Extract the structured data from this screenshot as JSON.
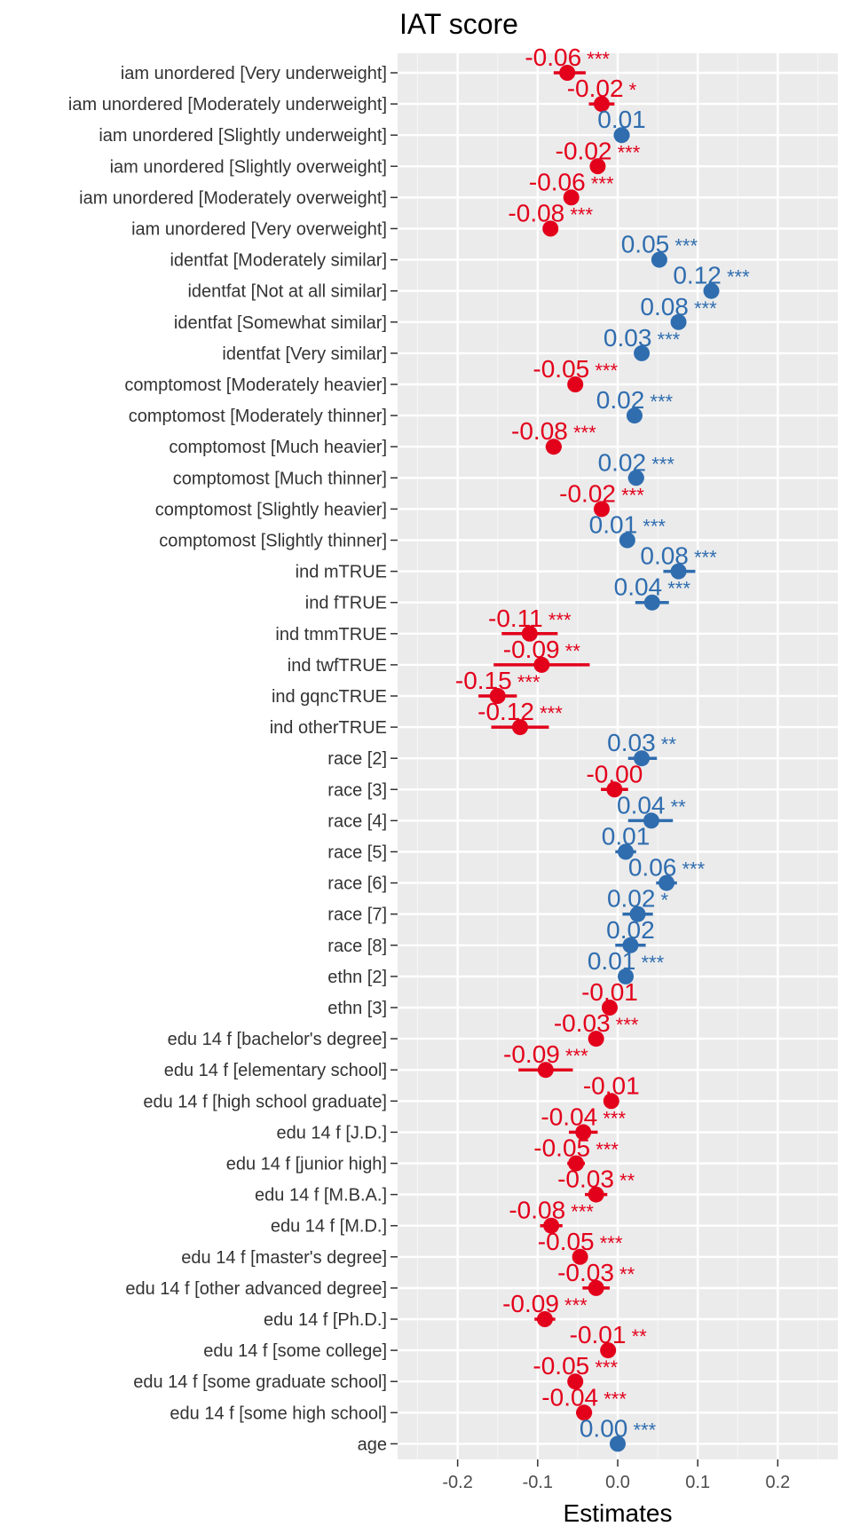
{
  "chart_data": {
    "type": "scatter",
    "title": "IAT score",
    "xlabel": "Estimates",
    "xlim": [
      -0.275,
      0.275
    ],
    "xticks": [
      -0.2,
      -0.1,
      0.0,
      0.1,
      0.2
    ],
    "xtick_labels": [
      "-0.2",
      "-0.1",
      "0.0",
      "0.1",
      "0.2"
    ],
    "grid": true,
    "colors": {
      "negative": "#e3001b",
      "positive": "#2f6daf"
    },
    "terms": [
      {
        "term": "iam unordered [Very underweight]",
        "estimate": -0.063,
        "ci": [
          -0.08,
          -0.04
        ],
        "label": "-0.06",
        "stars": "***"
      },
      {
        "term": "iam unordered [Moderately underweight]",
        "estimate": -0.02,
        "ci": [
          -0.036,
          -0.004
        ],
        "label": "-0.02",
        "stars": "*"
      },
      {
        "term": "iam unordered [Slightly underweight]",
        "estimate": 0.005,
        "ci": [
          -0.005,
          0.015
        ],
        "label": "0.01",
        "stars": ""
      },
      {
        "term": "iam unordered [Slightly overweight]",
        "estimate": -0.025,
        "ci": [
          -0.03,
          -0.02
        ],
        "label": "-0.02",
        "stars": "***"
      },
      {
        "term": "iam unordered [Moderately overweight]",
        "estimate": -0.058,
        "ci": [
          -0.063,
          -0.053
        ],
        "label": "-0.06",
        "stars": "***"
      },
      {
        "term": "iam unordered [Very overweight]",
        "estimate": -0.084,
        "ci": [
          -0.09,
          -0.078
        ],
        "label": "-0.08",
        "stars": "***"
      },
      {
        "term": "identfat [Moderately similar]",
        "estimate": 0.052,
        "ci": [
          0.046,
          0.058
        ],
        "label": "0.05",
        "stars": "***"
      },
      {
        "term": "identfat [Not at all similar]",
        "estimate": 0.117,
        "ci": [
          0.109,
          0.125
        ],
        "label": "0.12",
        "stars": "***"
      },
      {
        "term": "identfat [Somewhat similar]",
        "estimate": 0.076,
        "ci": [
          0.07,
          0.082
        ],
        "label": "0.08",
        "stars": "***"
      },
      {
        "term": "identfat [Very similar]",
        "estimate": 0.03,
        "ci": [
          0.024,
          0.036
        ],
        "label": "0.03",
        "stars": "***"
      },
      {
        "term": "comptomost [Moderately heavier]",
        "estimate": -0.053,
        "ci": [
          -0.058,
          -0.048
        ],
        "label": "-0.05",
        "stars": "***"
      },
      {
        "term": "comptomost [Moderately thinner]",
        "estimate": 0.021,
        "ci": [
          0.015,
          0.027
        ],
        "label": "0.02",
        "stars": "***"
      },
      {
        "term": "comptomost [Much heavier]",
        "estimate": -0.08,
        "ci": [
          -0.09,
          -0.07
        ],
        "label": "-0.08",
        "stars": "***"
      },
      {
        "term": "comptomost [Much thinner]",
        "estimate": 0.023,
        "ci": [
          0.013,
          0.033
        ],
        "label": "0.02",
        "stars": "***"
      },
      {
        "term": "comptomost [Slightly heavier]",
        "estimate": -0.02,
        "ci": [
          -0.025,
          -0.015
        ],
        "label": "-0.02",
        "stars": "***"
      },
      {
        "term": "comptomost [Slightly thinner]",
        "estimate": 0.012,
        "ci": [
          0.007,
          0.017
        ],
        "label": "0.01",
        "stars": "***"
      },
      {
        "term": "ind mTRUE",
        "estimate": 0.076,
        "ci": [
          0.057,
          0.097
        ],
        "label": "0.08",
        "stars": "***"
      },
      {
        "term": "ind fTRUE",
        "estimate": 0.043,
        "ci": [
          0.022,
          0.064
        ],
        "label": "0.04",
        "stars": "***"
      },
      {
        "term": "ind tmmTRUE",
        "estimate": -0.11,
        "ci": [
          -0.145,
          -0.075
        ],
        "label": "-0.11",
        "stars": "***"
      },
      {
        "term": "ind twfTRUE",
        "estimate": -0.095,
        "ci": [
          -0.155,
          -0.035
        ],
        "label": "-0.09",
        "stars": "**"
      },
      {
        "term": "ind gqncTRUE",
        "estimate": -0.15,
        "ci": [
          -0.174,
          -0.126
        ],
        "label": "-0.15",
        "stars": "***"
      },
      {
        "term": "ind otherTRUE",
        "estimate": -0.122,
        "ci": [
          -0.158,
          -0.086
        ],
        "label": "-0.12",
        "stars": "***"
      },
      {
        "term": "race [2]",
        "estimate": 0.03,
        "ci": [
          0.013,
          0.049
        ],
        "label": "0.03",
        "stars": "**"
      },
      {
        "term": "race [3]",
        "estimate": -0.004,
        "ci": [
          -0.021,
          0.013
        ],
        "label": "-0.00",
        "stars": ""
      },
      {
        "term": "race [4]",
        "estimate": 0.042,
        "ci": [
          0.013,
          0.069
        ],
        "label": "0.04",
        "stars": "**"
      },
      {
        "term": "race [5]",
        "estimate": 0.01,
        "ci": [
          -0.003,
          0.023
        ],
        "label": "0.01",
        "stars": ""
      },
      {
        "term": "race [6]",
        "estimate": 0.061,
        "ci": [
          0.048,
          0.074
        ],
        "label": "0.06",
        "stars": "***"
      },
      {
        "term": "race [7]",
        "estimate": 0.025,
        "ci": [
          0.006,
          0.044
        ],
        "label": "0.02",
        "stars": "*"
      },
      {
        "term": "race [8]",
        "estimate": 0.016,
        "ci": [
          -0.003,
          0.035
        ],
        "label": "0.02",
        "stars": ""
      },
      {
        "term": "ethn [2]",
        "estimate": 0.01,
        "ci": [
          0.006,
          0.014
        ],
        "label": "0.01",
        "stars": "***"
      },
      {
        "term": "ethn [3]",
        "estimate": -0.01,
        "ci": [
          -0.019,
          -0.001
        ],
        "label": "-0.01",
        "stars": ""
      },
      {
        "term": "edu 14 f [bachelor's degree]",
        "estimate": -0.027,
        "ci": [
          -0.032,
          -0.022
        ],
        "label": "-0.03",
        "stars": "***"
      },
      {
        "term": "edu 14 f [elementary school]",
        "estimate": -0.09,
        "ci": [
          -0.124,
          -0.056
        ],
        "label": "-0.09",
        "stars": "***"
      },
      {
        "term": "edu 14 f [high school graduate]",
        "estimate": -0.008,
        "ci": [
          -0.014,
          -0.002
        ],
        "label": "-0.01",
        "stars": ""
      },
      {
        "term": "edu 14 f [J.D.]",
        "estimate": -0.043,
        "ci": [
          -0.061,
          -0.025
        ],
        "label": "-0.04",
        "stars": "***"
      },
      {
        "term": "edu 14 f [junior high]",
        "estimate": -0.052,
        "ci": [
          -0.063,
          -0.041
        ],
        "label": "-0.05",
        "stars": "***"
      },
      {
        "term": "edu 14 f [M.B.A.]",
        "estimate": -0.027,
        "ci": [
          -0.041,
          -0.013
        ],
        "label": "-0.03",
        "stars": "**"
      },
      {
        "term": "edu 14 f [M.D.]",
        "estimate": -0.083,
        "ci": [
          -0.097,
          -0.069
        ],
        "label": "-0.08",
        "stars": "***"
      },
      {
        "term": "edu 14 f [master's degree]",
        "estimate": -0.047,
        "ci": [
          -0.052,
          -0.042
        ],
        "label": "-0.05",
        "stars": "***"
      },
      {
        "term": "edu 14 f [other advanced degree]",
        "estimate": -0.027,
        "ci": [
          -0.044,
          -0.01
        ],
        "label": "-0.03",
        "stars": "**"
      },
      {
        "term": "edu 14 f [Ph.D.]",
        "estimate": -0.091,
        "ci": [
          -0.104,
          -0.078
        ],
        "label": "-0.09",
        "stars": "***"
      },
      {
        "term": "edu 14 f [some college]",
        "estimate": -0.012,
        "ci": [
          -0.017,
          -0.007
        ],
        "label": "-0.01",
        "stars": "**"
      },
      {
        "term": "edu 14 f [some graduate school]",
        "estimate": -0.053,
        "ci": [
          -0.061,
          -0.045
        ],
        "label": "-0.05",
        "stars": "***"
      },
      {
        "term": "edu 14 f [some high school]",
        "estimate": -0.042,
        "ci": [
          -0.052,
          -0.032
        ],
        "label": "-0.04",
        "stars": "***"
      },
      {
        "term": "age",
        "estimate": 0.0,
        "ci": [
          -0.001,
          0.001
        ],
        "label": "0.00",
        "stars": "***"
      }
    ]
  }
}
